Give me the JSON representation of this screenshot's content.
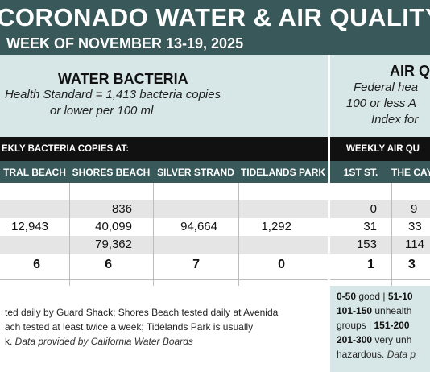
{
  "header": {
    "title": "CORONADO WATER & AIR QUALITY R",
    "subtitle": "WEEK OF NOVEMBER 13-19, 2025"
  },
  "water": {
    "title": "WATER BACTERIA",
    "note_line1": "Health Standard  = 1,413 bacteria copies",
    "note_line2": "or lower per 100 ml",
    "band": "EKLY BACTERIA COPIES AT:",
    "columns": [
      "TRAL BEACH",
      "SHORES BEACH",
      "SILVER STRAND",
      "TIDELANDS PARK"
    ],
    "rows": [
      [
        "",
        "",
        "",
        ""
      ],
      [
        "",
        "836",
        "",
        ""
      ],
      [
        "12,943",
        "40,099",
        "94,664",
        "1,292"
      ],
      [
        "",
        "79,362",
        "",
        ""
      ]
    ],
    "totals": [
      "6",
      "6",
      "7",
      "0"
    ],
    "footer_line1": "ted daily by Guard Shack; Shores Beach tested daily at Avenida",
    "footer_line2": "ach tested at least twice a week; Tidelands Park is usually",
    "footer_line3_plain": "k. ",
    "footer_line3_italic": "Data provided by California Water Boards"
  },
  "air": {
    "title": "AIR Q",
    "note_line1": "Federal hea",
    "note_line2": "100 or less A",
    "note_line3": "Index for",
    "band": "WEEKLY AIR QU",
    "columns": [
      "1ST ST.",
      "THE CAY"
    ],
    "rows": [
      [
        "",
        ""
      ],
      [
        "0",
        "9"
      ],
      [
        "31",
        "33"
      ],
      [
        "153",
        "114"
      ]
    ],
    "totals": [
      "1",
      "3"
    ],
    "legend_line1_a": "0-50",
    "legend_line1_b": " good | ",
    "legend_line1_c": "51-10",
    "legend_line2_a": "101-150",
    "legend_line2_b": " unhealth",
    "legend_line3_a": "groups | ",
    "legend_line3_b": "151-200",
    "legend_line4_a": "201-300",
    "legend_line4_b": " very unh",
    "legend_line5_a": "hazardous. ",
    "legend_line5_b": "Data p"
  }
}
